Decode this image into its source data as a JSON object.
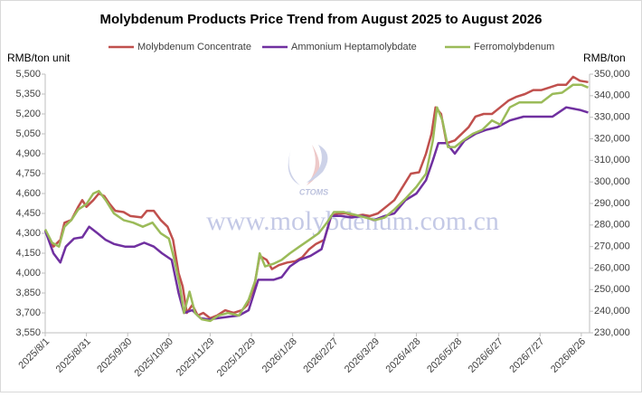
{
  "chart_data": {
    "type": "line",
    "title": "Molybdenum Products Price Trend from August 2025 to August 2026",
    "y_label": "RMB/ton unit",
    "y2_label": "RMB/ton",
    "watermark": "www.molybdenum.com.cn",
    "watermark_logo": "CTOMS",
    "xlim": [
      "2025/8/1",
      "2026/9/1"
    ],
    "xticks": [
      "2025/8/1",
      "2025/8/31",
      "2025/9/30",
      "2025/10/30",
      "2025/11/29",
      "2025/12/29",
      "2026/1/28",
      "2026/2/27",
      "2026/3/29",
      "2026/4/28",
      "2026/5/28",
      "2026/6/27",
      "2026/7/27",
      "2026/8/26"
    ],
    "ylim": [
      3550,
      5500
    ],
    "yticks": [
      {
        "value": 3550,
        "label": "3,550"
      },
      {
        "value": 3700,
        "label": "3,700"
      },
      {
        "value": 3850,
        "label": "3,850"
      },
      {
        "value": 4000,
        "label": "4,000"
      },
      {
        "value": 4150,
        "label": "4,150"
      },
      {
        "value": 4300,
        "label": "4,300"
      },
      {
        "value": 4450,
        "label": "4,450"
      },
      {
        "value": 4600,
        "label": "4,600"
      },
      {
        "value": 4750,
        "label": "4,750"
      },
      {
        "value": 4900,
        "label": "4,900"
      },
      {
        "value": 5050,
        "label": "5,050"
      },
      {
        "value": 5200,
        "label": "5,200"
      },
      {
        "value": 5350,
        "label": "5,350"
      },
      {
        "value": 5500,
        "label": "5,500"
      }
    ],
    "y2lim": [
      230000,
      350000
    ],
    "y2ticks": [
      {
        "value": 230000,
        "label": "230,000"
      },
      {
        "value": 240000,
        "label": "240,000"
      },
      {
        "value": 250000,
        "label": "250,000"
      },
      {
        "value": 260000,
        "label": "260,000"
      },
      {
        "value": 270000,
        "label": "270,000"
      },
      {
        "value": 280000,
        "label": "280,000"
      },
      {
        "value": 290000,
        "label": "290,000"
      },
      {
        "value": 300000,
        "label": "300,000"
      },
      {
        "value": 310000,
        "label": "310,000"
      },
      {
        "value": 320000,
        "label": "320,000"
      },
      {
        "value": 330000,
        "label": "330,000"
      },
      {
        "value": 340000,
        "label": "340,000"
      },
      {
        "value": 350000,
        "label": "350,000"
      }
    ],
    "grid": false,
    "series": [
      {
        "name": "Molybdenum Concentrate",
        "color": "#c0504d",
        "axis": "y",
        "x": [
          "2025/8/1",
          "2025/8/7",
          "2025/8/12",
          "2025/8/15",
          "2025/8/20",
          "2025/8/25",
          "2025/8/28",
          "2025/8/31",
          "2025/9/5",
          "2025/9/9",
          "2025/9/13",
          "2025/9/17",
          "2025/9/21",
          "2025/9/27",
          "2025/10/2",
          "2025/10/10",
          "2025/10/14",
          "2025/10/19",
          "2025/10/24",
          "2025/10/29",
          "2025/11/2",
          "2025/11/6",
          "2025/11/9",
          "2025/11/12",
          "2025/11/16",
          "2025/11/20",
          "2025/11/24",
          "2025/11/29",
          "2025/12/4",
          "2025/12/10",
          "2025/12/16",
          "2025/12/22",
          "2025/12/26",
          "2025/12/31",
          "2026/1/4",
          "2026/1/9",
          "2026/1/13",
          "2026/1/18",
          "2026/1/24",
          "2026/1/30",
          "2026/2/4",
          "2026/2/9",
          "2026/2/14",
          "2026/2/20",
          "2026/2/25",
          "2026/3/2",
          "2026/3/8",
          "2026/3/14",
          "2026/3/20",
          "2026/3/25",
          "2026/3/31",
          "2026/4/6",
          "2026/4/12",
          "2026/4/18",
          "2026/4/24",
          "2026/4/30",
          "2026/5/5",
          "2026/5/9",
          "2026/5/12",
          "2026/5/16",
          "2026/5/20",
          "2026/5/26",
          "2026/5/31",
          "2026/6/5",
          "2026/6/10",
          "2026/6/16",
          "2026/6/22",
          "2026/6/28",
          "2026/7/4",
          "2026/7/10",
          "2026/7/16",
          "2026/7/22",
          "2026/7/28",
          "2026/8/3",
          "2026/8/9",
          "2026/8/15",
          "2026/8/20",
          "2026/8/25",
          "2026/8/31"
        ],
        "values": [
          4320,
          4200,
          4250,
          4380,
          4400,
          4500,
          4550,
          4500,
          4550,
          4600,
          4580,
          4520,
          4470,
          4460,
          4430,
          4420,
          4470,
          4470,
          4400,
          4350,
          4250,
          4000,
          3900,
          3700,
          3760,
          3680,
          3700,
          3660,
          3680,
          3720,
          3700,
          3720,
          3760,
          3900,
          4130,
          4100,
          4030,
          4060,
          4080,
          4090,
          4120,
          4180,
          4220,
          4250,
          4430,
          4450,
          4450,
          4430,
          4440,
          4430,
          4450,
          4500,
          4550,
          4650,
          4750,
          4760,
          4900,
          5050,
          5250,
          5200,
          4980,
          5000,
          5050,
          5100,
          5180,
          5200,
          5200,
          5250,
          5300,
          5330,
          5350,
          5380,
          5380,
          5400,
          5420,
          5420,
          5480,
          5450,
          5440
        ]
      },
      {
        "name": "Ammonium Heptamolybdate",
        "color": "#7030a0",
        "axis": "y2",
        "x": [
          "2025/8/1",
          "2025/8/7",
          "2025/8/12",
          "2025/8/16",
          "2025/8/22",
          "2025/8/28",
          "2025/9/2",
          "2025/9/8",
          "2025/9/14",
          "2025/9/20",
          "2025/9/28",
          "2025/10/5",
          "2025/10/12",
          "2025/10/19",
          "2025/10/25",
          "2025/11/1",
          "2025/11/6",
          "2025/11/10",
          "2025/11/16",
          "2025/11/22",
          "2025/11/28",
          "2025/12/5",
          "2025/12/12",
          "2025/12/20",
          "2025/12/27",
          "2026/1/3",
          "2026/1/8",
          "2026/1/14",
          "2026/1/20",
          "2026/1/26",
          "2026/2/2",
          "2026/2/10",
          "2026/2/18",
          "2026/2/25",
          "2026/3/4",
          "2026/3/12",
          "2026/3/20",
          "2026/3/28",
          "2026/4/5",
          "2026/4/12",
          "2026/4/20",
          "2026/4/28",
          "2026/5/5",
          "2026/5/10",
          "2026/5/14",
          "2026/5/20",
          "2026/5/26",
          "2026/6/2",
          "2026/6/10",
          "2026/6/18",
          "2026/6/26",
          "2026/7/5",
          "2026/7/15",
          "2026/7/25",
          "2026/8/5",
          "2026/8/15",
          "2026/8/25",
          "2026/8/31"
        ],
        "values": [
          277400,
          266900,
          262600,
          270000,
          273700,
          274300,
          279200,
          276200,
          273100,
          271200,
          270000,
          270000,
          271800,
          270000,
          266900,
          263800,
          248500,
          239200,
          240500,
          236800,
          236200,
          236800,
          237400,
          238000,
          240500,
          254600,
          254600,
          254600,
          255800,
          260800,
          263800,
          265700,
          268800,
          284200,
          284200,
          283500,
          284200,
          282300,
          284200,
          285400,
          291500,
          294600,
          300800,
          310000,
          318000,
          318000,
          313100,
          319200,
          322300,
          324200,
          325400,
          328500,
          330300,
          330300,
          330300,
          334600,
          333400,
          332200
        ]
      },
      {
        "name": "Ferromolybdenum",
        "color": "#9bbb59",
        "axis": "y2",
        "x": [
          "2025/8/1",
          "2025/8/6",
          "2025/8/11",
          "2025/8/15",
          "2025/8/20",
          "2025/8/25",
          "2025/8/31",
          "2025/9/5",
          "2025/9/9",
          "2025/9/14",
          "2025/9/20",
          "2025/9/27",
          "2025/10/4",
          "2025/10/11",
          "2025/10/18",
          "2025/10/24",
          "2025/10/30",
          "2025/11/3",
          "2025/11/7",
          "2025/11/10",
          "2025/11/14",
          "2025/11/18",
          "2025/11/23",
          "2025/11/29",
          "2025/12/5",
          "2025/12/12",
          "2025/12/20",
          "2025/12/27",
          "2026/1/1",
          "2026/1/4",
          "2026/1/8",
          "2026/1/14",
          "2026/1/20",
          "2026/1/26",
          "2026/2/2",
          "2026/2/9",
          "2026/2/16",
          "2026/2/22",
          "2026/2/27",
          "2026/3/6",
          "2026/3/14",
          "2026/3/22",
          "2026/3/29",
          "2026/4/5",
          "2026/4/12",
          "2026/4/20",
          "2026/4/28",
          "2026/5/5",
          "2026/5/10",
          "2026/5/13",
          "2026/5/17",
          "2026/5/21",
          "2026/5/26",
          "2026/6/1",
          "2026/6/8",
          "2026/6/15",
          "2026/6/22",
          "2026/6/28",
          "2026/7/5",
          "2026/7/12",
          "2026/7/20",
          "2026/7/28",
          "2026/8/5",
          "2026/8/12",
          "2026/8/20",
          "2026/8/26",
          "2026/8/31"
        ],
        "values": [
          278000,
          271800,
          270000,
          279200,
          282300,
          287200,
          289700,
          294600,
          295800,
          291500,
          285400,
          282300,
          281100,
          279200,
          281100,
          276200,
          273700,
          263800,
          251500,
          239200,
          249100,
          239200,
          236200,
          235500,
          238000,
          239200,
          238000,
          245400,
          254600,
          266900,
          260800,
          262000,
          263800,
          266900,
          270000,
          273100,
          276200,
          281100,
          286000,
          286000,
          284800,
          283500,
          282300,
          283500,
          287200,
          292200,
          297700,
          303800,
          319200,
          334600,
          328500,
          316200,
          316200,
          319200,
          322300,
          324200,
          328500,
          326600,
          334600,
          336900,
          336900,
          336900,
          340800,
          341400,
          345100,
          345100,
          343800
        ]
      }
    ]
  }
}
